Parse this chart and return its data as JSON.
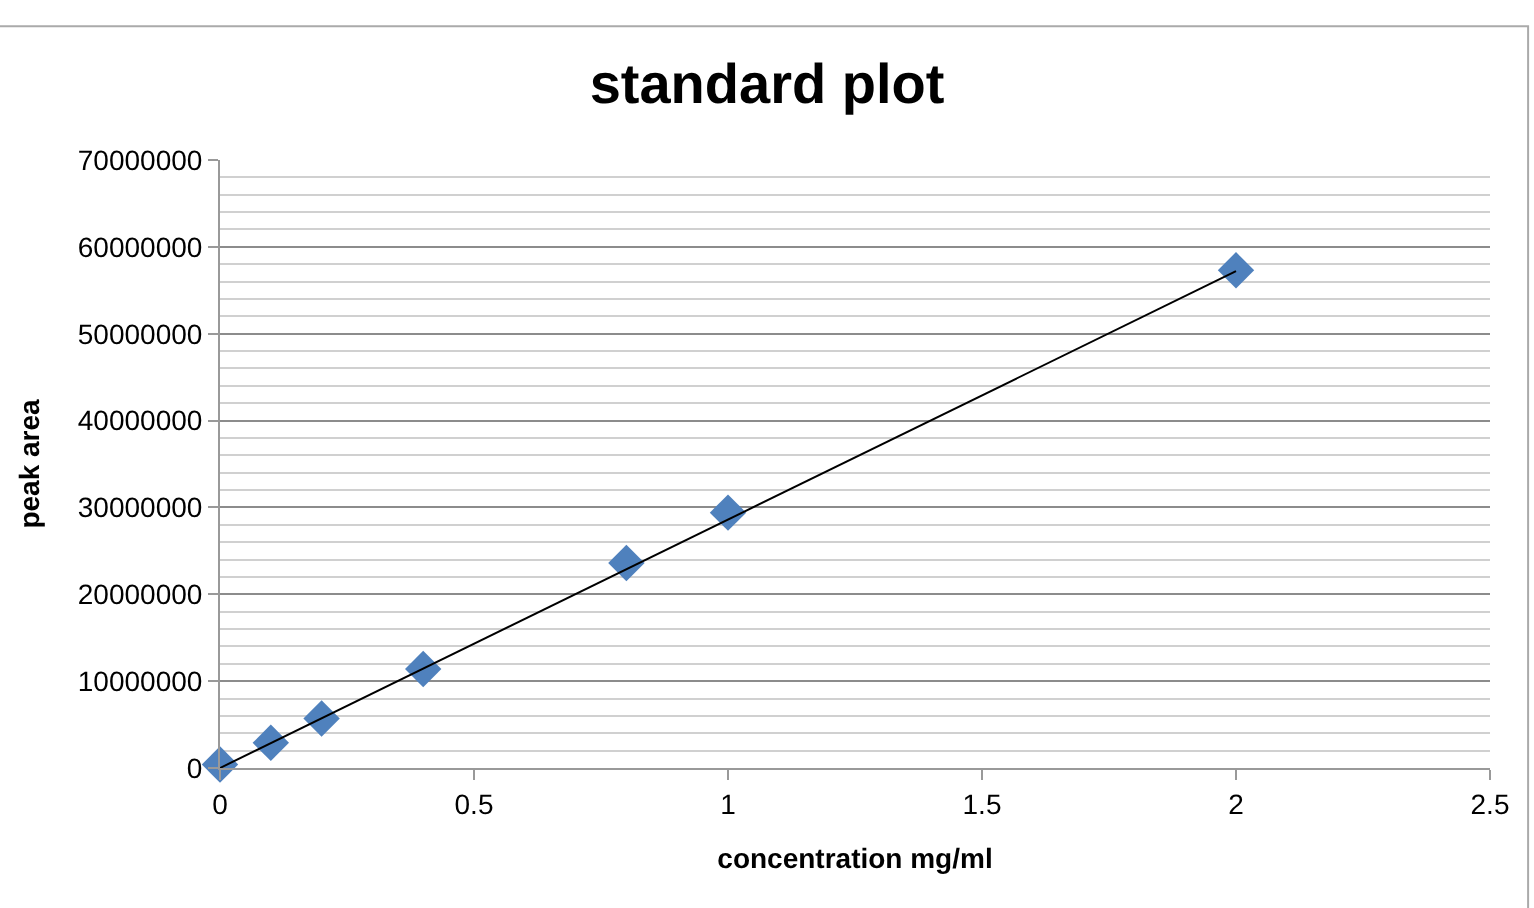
{
  "chart_data": {
    "type": "scatter",
    "title": "standard plot",
    "xlabel": "concentration mg/ml",
    "ylabel": "peak area",
    "series": [
      {
        "color": "#4f81bd",
        "marker": "diamond",
        "x": [
          0,
          0.1,
          0.2,
          0.4,
          0.8,
          1,
          2
        ],
        "values": [
          400000,
          2900000,
          5700000,
          11400000,
          23600000,
          29400000,
          57300000
        ]
      },
      {
        "type": "line",
        "color": "#000000",
        "marker": "none",
        "line_style": "solid",
        "x": [
          0,
          2
        ],
        "values": [
          0,
          57200000
        ]
      }
    ],
    "xlim": [
      0,
      2.5
    ],
    "xticks": [
      0,
      0.5,
      1,
      1.5,
      2,
      2.5
    ],
    "ylim": [
      0,
      70000000
    ],
    "yticks": [
      0,
      10000000,
      20000000,
      30000000,
      40000000,
      50000000,
      60000000,
      70000000
    ],
    "grid": "y"
  }
}
